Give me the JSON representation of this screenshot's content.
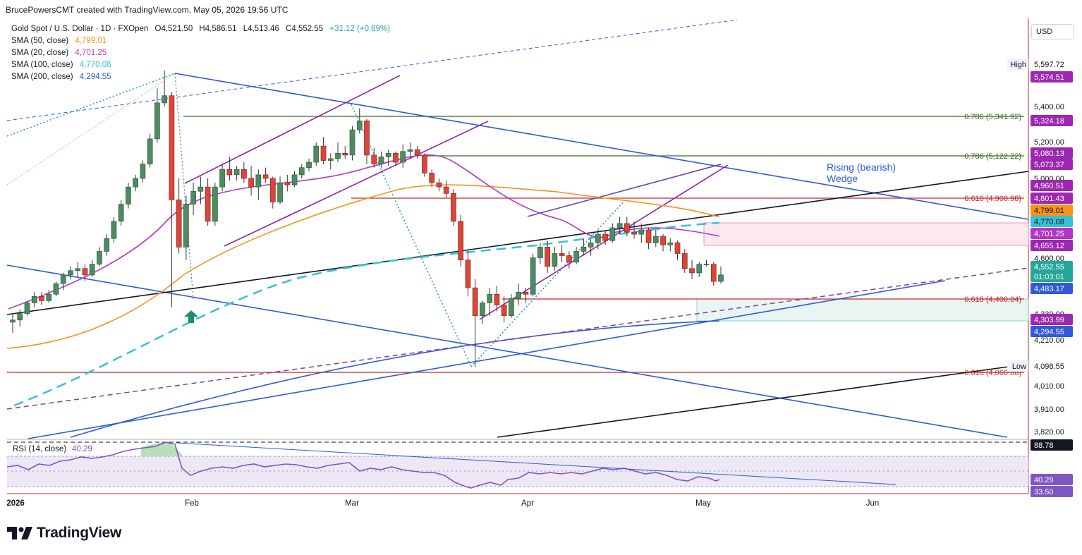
{
  "header": "BrucePowersCMT created with TradingView.com, May 05, 2026 19:56 UTC",
  "symbol_line": {
    "title": "Gold Spot / U.S. Dollar · 1D · FXOpen",
    "o": "O4,521.50",
    "h": "H4,586.51",
    "l": "L4,513.46",
    "c": "C4,552.55",
    "chg": "+31.12 (+0.69%)"
  },
  "indicators": [
    {
      "label": "SMA (50, close)",
      "value": "4,799.01",
      "color": "#f7931a"
    },
    {
      "label": "SMA (20, close)",
      "value": "4,701.25",
      "color": "#b534c9"
    },
    {
      "label": "SMA (100, close)",
      "value": "4,770.08",
      "color": "#39c0d6"
    },
    {
      "label": "SMA (200, close)",
      "value": "4,294.55",
      "color": "#2f5bd9"
    }
  ],
  "currency_button": "USD",
  "brand": "TradingView",
  "chart_data": {
    "type": "candlestick",
    "y_axis_ticks": [
      "5,400.00",
      "5,200.00",
      "5,000.00",
      "4,600.00",
      "4,330.00",
      "4,210.00",
      "4,010.00",
      "3,910.00",
      "3,820.00"
    ],
    "x_axis_ticks": [
      "2026",
      "Feb",
      "Mar",
      "Apr",
      "May",
      "Jun"
    ],
    "price_tags": [
      {
        "label": "High",
        "value": "5,597.72",
        "bg": "#ffffff",
        "fg": "#131722"
      },
      {
        "value": "5,574.51",
        "bg": "#9c27b0",
        "fg": "#ffffff"
      },
      {
        "value": "5,324.18",
        "bg": "#9c27b0",
        "fg": "#ffffff"
      },
      {
        "value": "5,080.13",
        "bg": "#9c27b0",
        "fg": "#ffffff"
      },
      {
        "value": "5,073.37",
        "bg": "#9c27b0",
        "fg": "#ffffff"
      },
      {
        "value": "4,960.51",
        "bg": "#9c27b0",
        "fg": "#ffffff"
      },
      {
        "value": "4,801.43",
        "bg": "#9c27b0",
        "fg": "#ffffff"
      },
      {
        "value": "4,799.01",
        "bg": "#f7931a",
        "fg": "#131722"
      },
      {
        "value": "4,770.08",
        "bg": "#39c0d6",
        "fg": "#131722"
      },
      {
        "value": "4,701.25",
        "bg": "#b534c9",
        "fg": "#ffffff"
      },
      {
        "value": "4,655.12",
        "bg": "#9c27b0",
        "fg": "#ffffff"
      },
      {
        "value": "4,552.55",
        "bg": "#26a69a",
        "fg": "#ffffff"
      },
      {
        "value": "01:03:01",
        "bg": "#26a69a",
        "fg": "#ffffff"
      },
      {
        "value": "4,483.17",
        "bg": "#2f5bd9",
        "fg": "#ffffff"
      },
      {
        "value": "4,303.99",
        "bg": "#9c27b0",
        "fg": "#ffffff"
      },
      {
        "value": "4,294.55",
        "bg": "#2f5bd9",
        "fg": "#ffffff"
      },
      {
        "label": "Low",
        "value": "4,098.55",
        "bg": "#ffffff",
        "fg": "#131722"
      },
      {
        "value": "88.78",
        "bg": "#131722",
        "fg": "#ffffff"
      },
      {
        "value": "40.29",
        "bg": "#7e57c2",
        "fg": "#ffffff"
      },
      {
        "value": "33.50",
        "bg": "#7e57c2",
        "fg": "#ffffff"
      }
    ],
    "fib_labels": [
      {
        "text": "0.786 (5,341.92)",
        "color": "#3a6b1e"
      },
      {
        "text": "0.786 (5,122.22)",
        "color": "#3a6b1e"
      },
      {
        "text": "0.618 (4,900.98)",
        "color": "#c62828"
      },
      {
        "text": "0.618 (4,400.04)",
        "color": "#c62828"
      },
      {
        "text": "0.618 (4,066.88)",
        "color": "#c62828"
      }
    ],
    "annotation": {
      "text": "Rising (bearish)\nWedge",
      "color": "#2f5bd9"
    },
    "rsi": {
      "label": "RSI (14, close)",
      "value": "40.29"
    },
    "candles": [
      [
        4330,
        4370,
        4280,
        4340
      ],
      [
        4340,
        4390,
        4310,
        4370
      ],
      [
        4370,
        4430,
        4360,
        4420
      ],
      [
        4420,
        4470,
        4400,
        4450
      ],
      [
        4450,
        4470,
        4410,
        4430
      ],
      [
        4430,
        4480,
        4420,
        4460
      ],
      [
        4460,
        4520,
        4450,
        4510
      ],
      [
        4510,
        4560,
        4480,
        4550
      ],
      [
        4550,
        4590,
        4530,
        4570
      ],
      [
        4570,
        4610,
        4540,
        4580
      ],
      [
        4580,
        4600,
        4520,
        4550
      ],
      [
        4550,
        4620,
        4540,
        4600
      ],
      [
        4600,
        4680,
        4590,
        4660
      ],
      [
        4660,
        4740,
        4640,
        4720
      ],
      [
        4720,
        4820,
        4700,
        4800
      ],
      [
        4800,
        4900,
        4780,
        4880
      ],
      [
        4880,
        4980,
        4860,
        4960
      ],
      [
        4960,
        5020,
        4940,
        5000
      ],
      [
        5000,
        5100,
        4980,
        5080
      ],
      [
        5080,
        5250,
        5060,
        5220
      ],
      [
        5220,
        5500,
        5200,
        5420
      ],
      [
        5420,
        5600,
        5400,
        5460
      ],
      [
        5460,
        5480,
        4400,
        4900
      ],
      [
        4900,
        5000,
        4650,
        4680
      ],
      [
        4680,
        4920,
        4620,
        4880
      ],
      [
        4880,
        4980,
        4830,
        4940
      ],
      [
        4940,
        5010,
        4880,
        4960
      ],
      [
        4960,
        5000,
        4780,
        4800
      ],
      [
        4800,
        4980,
        4780,
        4960
      ],
      [
        4960,
        5080,
        4940,
        5050
      ],
      [
        5050,
        5120,
        4990,
        5020
      ],
      [
        5020,
        5070,
        4990,
        5050
      ],
      [
        5050,
        5090,
        4980,
        5000
      ],
      [
        5000,
        5070,
        4920,
        4960
      ],
      [
        4960,
        5050,
        4900,
        5020
      ],
      [
        5020,
        5060,
        4980,
        5000
      ],
      [
        5000,
        5010,
        4860,
        4890
      ],
      [
        4890,
        5010,
        4880,
        4980
      ],
      [
        4980,
        5020,
        4940,
        4970
      ],
      [
        4970,
        5040,
        4960,
        5020
      ],
      [
        5020,
        5080,
        5000,
        5060
      ],
      [
        5060,
        5110,
        5040,
        5090
      ],
      [
        5090,
        5200,
        5070,
        5180
      ],
      [
        5180,
        5230,
        5080,
        5100
      ],
      [
        5100,
        5140,
        5050,
        5110
      ],
      [
        5110,
        5200,
        5090,
        5140
      ],
      [
        5140,
        5180,
        5110,
        5130
      ],
      [
        5130,
        5290,
        5100,
        5270
      ],
      [
        5270,
        5390,
        5250,
        5320
      ],
      [
        5320,
        5330,
        5080,
        5130
      ],
      [
        5130,
        5170,
        5060,
        5080
      ],
      [
        5080,
        5150,
        5060,
        5120
      ],
      [
        5120,
        5160,
        5070,
        5140
      ],
      [
        5140,
        5150,
        5070,
        5090
      ],
      [
        5090,
        5190,
        5060,
        5150
      ],
      [
        5150,
        5200,
        5110,
        5160
      ],
      [
        5160,
        5180,
        5110,
        5130
      ],
      [
        5130,
        5140,
        5010,
        5030
      ],
      [
        5030,
        5050,
        4960,
        4980
      ],
      [
        4980,
        5000,
        4940,
        4960
      ],
      [
        4960,
        4990,
        4910,
        4930
      ],
      [
        4930,
        4950,
        4780,
        4800
      ],
      [
        4800,
        4830,
        4590,
        4620
      ],
      [
        4620,
        4670,
        4450,
        4490
      ],
      [
        4490,
        4530,
        4120,
        4360
      ],
      [
        4360,
        4430,
        4320,
        4420
      ],
      [
        4420,
        4490,
        4360,
        4460
      ],
      [
        4460,
        4500,
        4380,
        4410
      ],
      [
        4410,
        4450,
        4330,
        4360
      ],
      [
        4360,
        4460,
        4350,
        4440
      ],
      [
        4440,
        4510,
        4410,
        4470
      ],
      [
        4470,
        4490,
        4420,
        4460
      ],
      [
        4460,
        4650,
        4450,
        4630
      ],
      [
        4630,
        4700,
        4600,
        4680
      ],
      [
        4680,
        4710,
        4560,
        4590
      ],
      [
        4590,
        4680,
        4570,
        4650
      ],
      [
        4650,
        4690,
        4610,
        4640
      ],
      [
        4640,
        4660,
        4580,
        4610
      ],
      [
        4610,
        4680,
        4600,
        4660
      ],
      [
        4660,
        4720,
        4640,
        4680
      ],
      [
        4680,
        4720,
        4640,
        4700
      ],
      [
        4700,
        4760,
        4670,
        4740
      ],
      [
        4740,
        4760,
        4690,
        4710
      ],
      [
        4710,
        4790,
        4700,
        4770
      ],
      [
        4770,
        4820,
        4740,
        4790
      ],
      [
        4790,
        4820,
        4730,
        4750
      ],
      [
        4750,
        4800,
        4720,
        4740
      ],
      [
        4740,
        4790,
        4700,
        4760
      ],
      [
        4760,
        4770,
        4670,
        4700
      ],
      [
        4700,
        4760,
        4680,
        4730
      ],
      [
        4730,
        4740,
        4660,
        4690
      ],
      [
        4690,
        4720,
        4660,
        4700
      ],
      [
        4700,
        4710,
        4620,
        4650
      ],
      [
        4650,
        4670,
        4560,
        4580
      ],
      [
        4580,
        4620,
        4530,
        4560
      ],
      [
        4560,
        4610,
        4540,
        4600
      ],
      [
        4600,
        4620,
        4590,
        4600
      ],
      [
        4600,
        4610,
        4500,
        4520
      ],
      [
        4520,
        4590,
        4510,
        4550
      ]
    ]
  }
}
